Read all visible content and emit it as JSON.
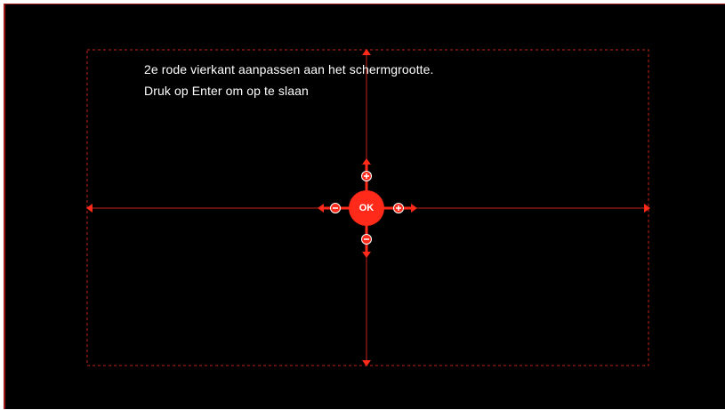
{
  "instructions": {
    "line1": "2e rode vierkant aanpassen aan het schermgrootte.",
    "line2": "Druk op Enter om op te slaan"
  },
  "controls": {
    "ok_label": "OK",
    "up_plus_icon": "plus-icon",
    "down_minus_icon": "minus-icon",
    "left_minus_icon": "minus-icon",
    "right_plus_icon": "plus-icon"
  },
  "colors": {
    "accent": "#ff2a1a",
    "guide": "#c8201a",
    "background": "#000000",
    "text": "#ffffff"
  }
}
